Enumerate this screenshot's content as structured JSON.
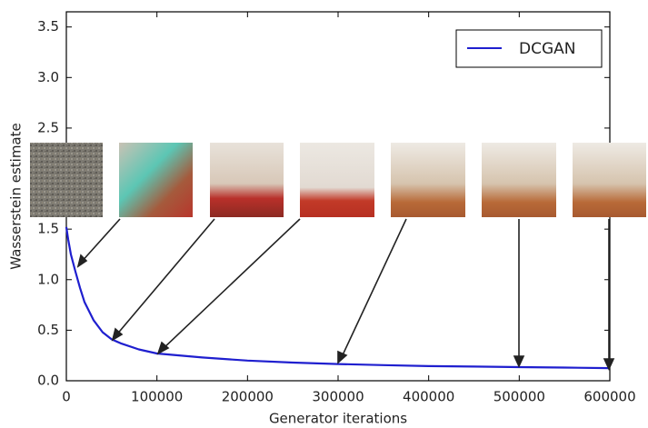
{
  "chart_data": {
    "type": "line",
    "x_label": "Generator iterations",
    "y_label": "Wasserstein estimate",
    "x": [
      0,
      2000,
      5000,
      10000,
      15000,
      20000,
      30000,
      40000,
      50000,
      60000,
      80000,
      100000,
      150000,
      200000,
      250000,
      300000,
      350000,
      400000,
      450000,
      500000,
      550000,
      600000
    ],
    "series": [
      {
        "name": "DCGAN",
        "color": "#1f1fcf",
        "values": [
          1.52,
          1.4,
          1.25,
          1.08,
          0.92,
          0.78,
          0.6,
          0.48,
          0.41,
          0.37,
          0.31,
          0.27,
          0.23,
          0.2,
          0.18,
          0.165,
          0.155,
          0.145,
          0.14,
          0.135,
          0.13,
          0.125
        ]
      }
    ],
    "xlim": [
      0,
      600000
    ],
    "xticks": [
      0,
      100000,
      200000,
      300000,
      400000,
      500000,
      600000
    ],
    "ylim": [
      0,
      3.65
    ],
    "yticks": [
      {
        "value": 0,
        "label": "0.0"
      },
      0.5,
      {
        "value": 1,
        "label": "1.0"
      },
      1.5,
      {
        "value": 2,
        "label": "2.0"
      },
      2.5,
      {
        "value": 3,
        "label": "3.0"
      },
      3.5
    ],
    "legend": "upper right"
  }
}
